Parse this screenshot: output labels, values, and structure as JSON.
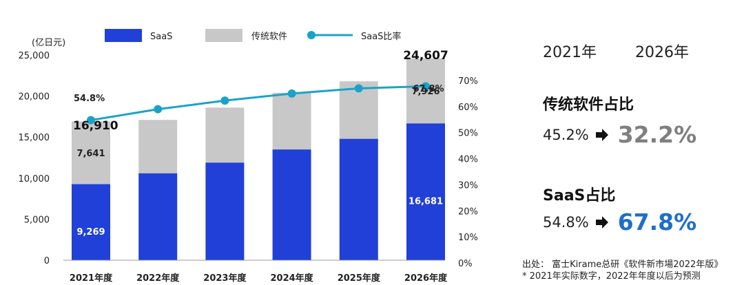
{
  "chart_data": {
    "type": "bar",
    "stacked": true,
    "categories": [
      "2021年度",
      "2022年度",
      "2023年度",
      "2024年度",
      "2025年度",
      "2026年度"
    ],
    "unit_label": "(亿日元)",
    "ylim": [
      0,
      25000
    ],
    "yticks": [
      "0",
      "5,000",
      "10,000",
      "15,000",
      "20,000",
      "25,000"
    ],
    "y2lim": [
      0,
      0.7
    ],
    "y2ticks": [
      "0%",
      "10%",
      "20%",
      "30%",
      "40%",
      "50%",
      "60%",
      "70%"
    ],
    "series": [
      {
        "name": "SaaS",
        "type": "bar",
        "color": "#2040d8",
        "values": [
          9269,
          10600,
          11900,
          13500,
          14800,
          16681
        ]
      },
      {
        "name": "传统软件",
        "type": "bar",
        "color": "#c8c8c8",
        "values": [
          7641,
          6500,
          6700,
          6900,
          7000,
          7926
        ]
      },
      {
        "name": "SaaS比率",
        "type": "line",
        "axis": "right",
        "color": "#1aa3c9",
        "values": [
          0.548,
          0.59,
          0.623,
          0.65,
          0.67,
          0.678
        ]
      }
    ],
    "labels": {
      "total": [
        "16,910",
        "",
        "",
        "",
        "",
        "24,607"
      ],
      "saas": [
        "9,269",
        "",
        "",
        "",
        "",
        "16,681"
      ],
      "trad": [
        "7,641",
        "",
        "",
        "",
        "",
        "7,926"
      ],
      "ratio": [
        "54.8%",
        "",
        "",
        "",
        "",
        "67.8%"
      ]
    },
    "legend": "top",
    "grid": false
  },
  "side": {
    "year_from": "2021年",
    "year_to": "2026年",
    "trad_title": "传统软件占比",
    "trad_from": "45.2%",
    "trad_to": "32.2%",
    "saas_title": "SaaS占比",
    "saas_from": "54.8%",
    "saas_to": "67.8%",
    "arrow_icon": "right-arrow-icon"
  },
  "source": {
    "line1": "出处：    富士Kirame总研《软件新市場2022年版》",
    "line2": "* 2021年实际数字，2022年年度以后为预测"
  }
}
